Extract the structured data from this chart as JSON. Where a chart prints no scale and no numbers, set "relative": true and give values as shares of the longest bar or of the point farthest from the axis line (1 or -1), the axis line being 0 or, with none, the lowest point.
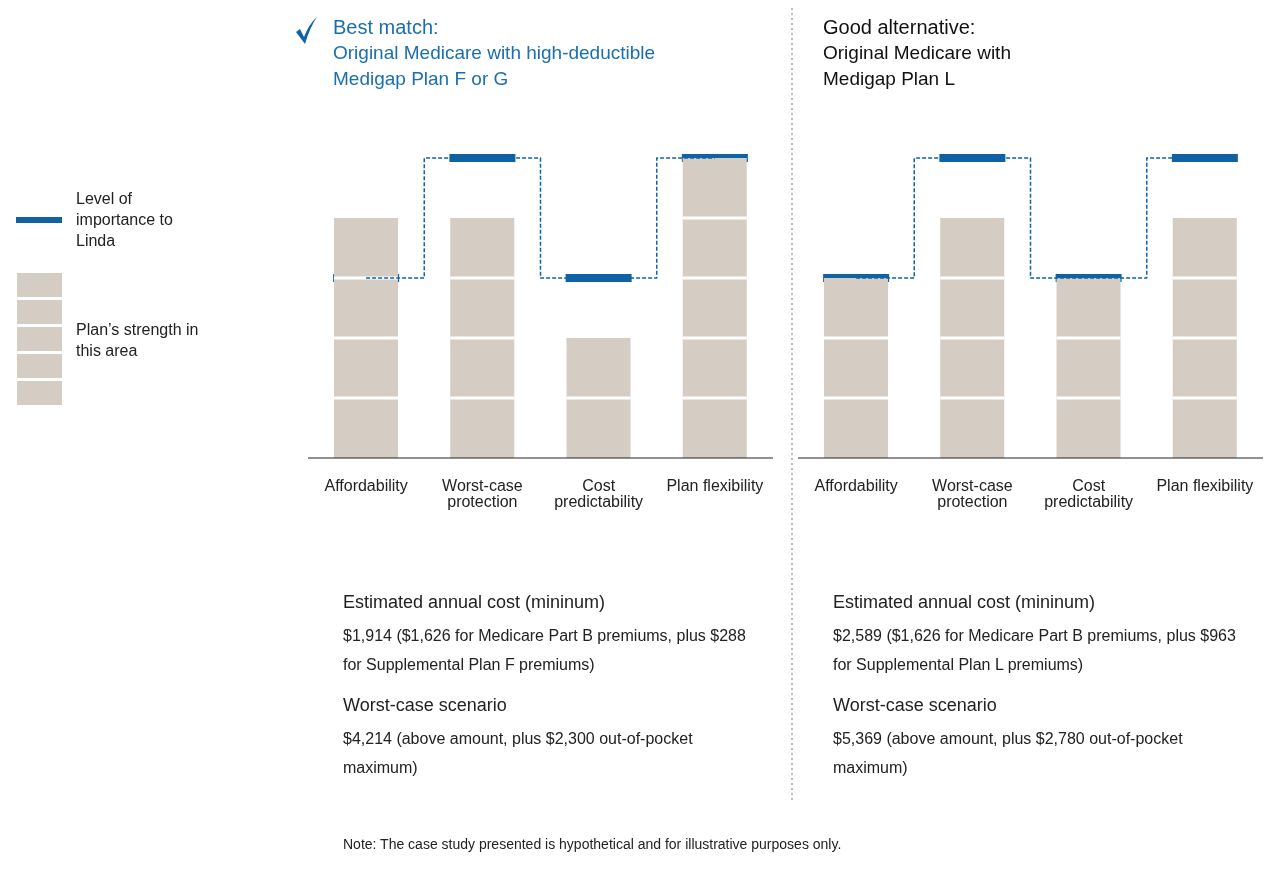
{
  "chart_data": [
    {
      "type": "bar",
      "title": "Best match:",
      "subtitle": "Original Medicare with high-deductible Medigap Plan F or G",
      "categories": [
        "Affordability",
        "Worst-case protection",
        "Cost predictability",
        "Plan flexibility"
      ],
      "relative": true,
      "legend": "left",
      "grid": false,
      "series": [
        {
          "name": "Level of importance to Linda",
          "type": "step",
          "color": "#0f63a5",
          "line_style": "dashed",
          "values": [
            0.6,
            1,
            0.6,
            1
          ]
        },
        {
          "name": "Plan’s strength in this area",
          "type": "bar",
          "color": "#d5ccc3",
          "values": [
            0.8,
            0.8,
            0.4,
            1
          ]
        }
      ],
      "annotations": [
        "Estimated annual cost (mininum)",
        "$1,914 ($1,626 for Medicare Part B premiums, plus $288 for Supplemental Plan F premiums)",
        "Worst-case scenario",
        "$4,214 (above amount, plus $2,300 out-of-pocket maximum)",
        "Note: The case study presented is hypothetical and for illustrative purposes only."
      ]
    },
    {
      "type": "bar",
      "title": "Good alternative:",
      "subtitle": "Original Medicare with Medigap Plan L",
      "categories": [
        "Affordability",
        "Worst-case protection",
        "Cost predictability",
        "Plan flexibility"
      ],
      "relative": true,
      "grid": false,
      "series": [
        {
          "type": "step",
          "color": "#0f63a5",
          "line_style": "dashed",
          "values": [
            0.6,
            1,
            0.6,
            1
          ]
        },
        {
          "type": "bar",
          "color": "#d5ccc3",
          "values": [
            0.6,
            0.8,
            0.6,
            0.8
          ]
        }
      ],
      "annotations": [
        "Estimated annual cost (mininum)",
        "$2,589 ($1,626 for Medicare Part B premiums, plus $963 for Supplemental Plan L premiums)",
        "Worst-case scenario",
        "$5,369 (above amount, plus $2,780 out-of-pocket maximum)"
      ]
    }
  ]
}
